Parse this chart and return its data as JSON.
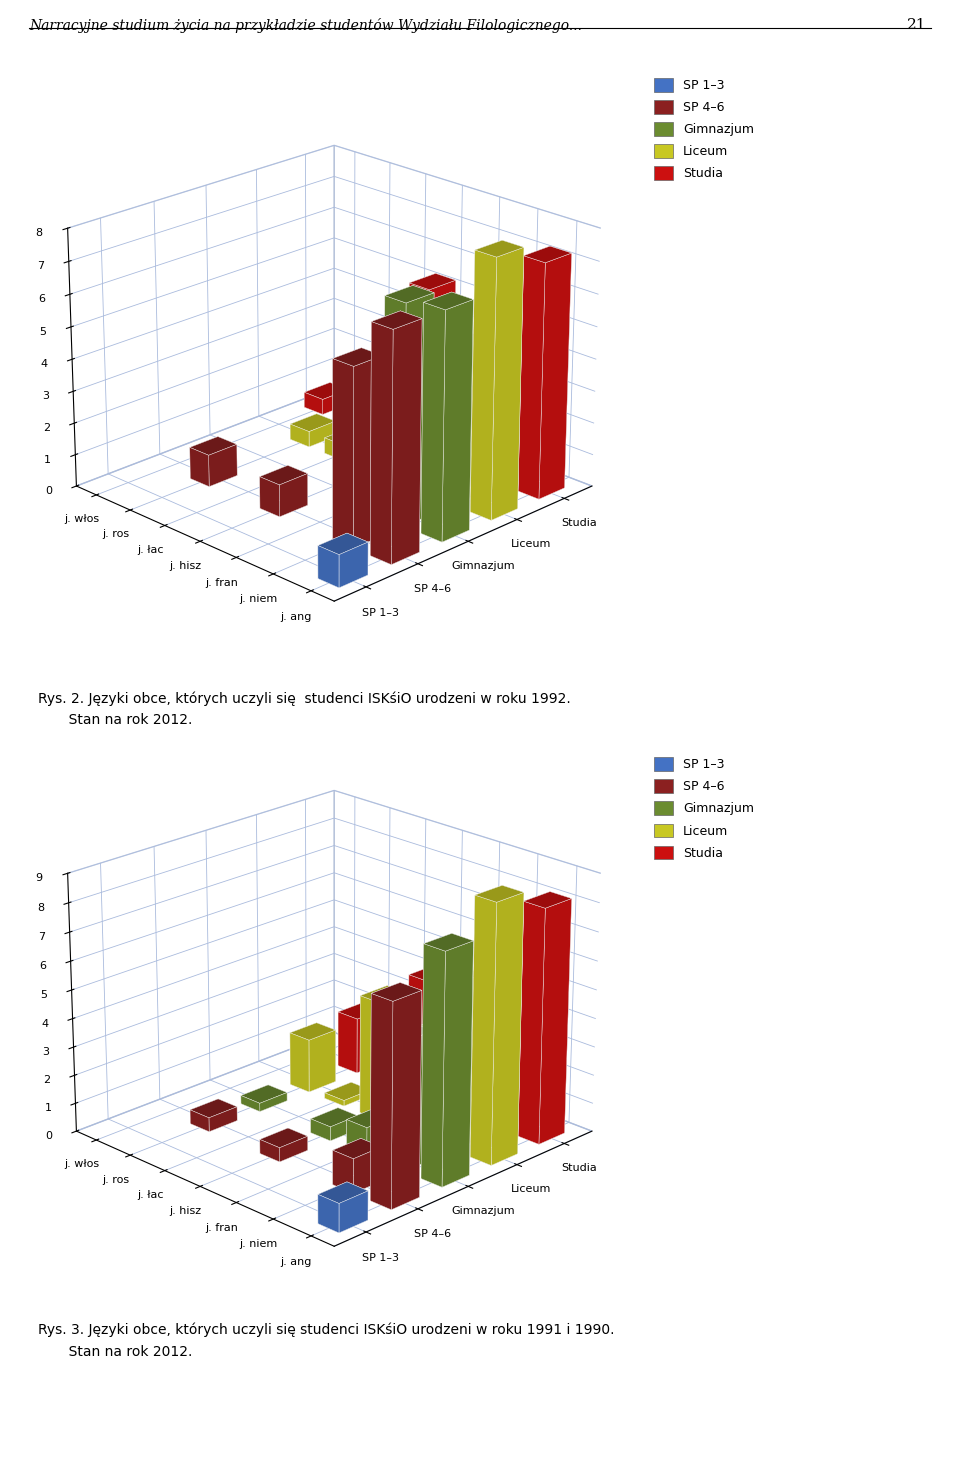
{
  "header": "Narracyjne studium życia na przykładzie studentów Wydziału Filologicznego...",
  "page_num": "21",
  "legend_labels": [
    "SP 1–3",
    "SP 4–6",
    "Gimnazjum",
    "Liceum",
    "Studia"
  ],
  "legend_colors": [
    "#4472C4",
    "#8B2020",
    "#6B8C30",
    "#C8C822",
    "#CC1010"
  ],
  "charts": [
    {
      "ylim": [
        0,
        8
      ],
      "yticks": [
        0,
        1,
        2,
        3,
        4,
        5,
        6,
        7,
        8
      ],
      "languages": [
        "j. ang",
        "j. niem",
        "j. fran",
        "j. hisz",
        "j. łac",
        "j. ros",
        "j. włos"
      ],
      "groups": [
        "SP 1–3",
        "SP 4–6",
        "Gimnazjum",
        "Liceum",
        "Studia"
      ],
      "data": [
        [
          1,
          0,
          0,
          0,
          0,
          0,
          0
        ],
        [
          7,
          5.5,
          0,
          1,
          0,
          1,
          0
        ],
        [
          7,
          6.8,
          0,
          0,
          0,
          0,
          0
        ],
        [
          8,
          4.9,
          0,
          0.5,
          0.5,
          0.5,
          0
        ],
        [
          7.3,
          6.7,
          0,
          5.3,
          0,
          0.5,
          0.5
        ]
      ],
      "caption1": "Rys. 2. Języki obce, których uczyli się  studenci ISKśiO urodzeni w roku 1992.",
      "caption2": "       Stan na rok 2012."
    },
    {
      "ylim": [
        0,
        9
      ],
      "yticks": [
        0,
        1,
        2,
        3,
        4,
        5,
        6,
        7,
        8,
        9
      ],
      "languages": [
        "j. ang",
        "j. niem",
        "j. fran",
        "j. hisz",
        "j. łac",
        "j. ros",
        "j. włos"
      ],
      "groups": [
        "SP 1–3",
        "SP 4–6",
        "Gimnazjum",
        "Liceum",
        "Studia"
      ],
      "data": [
        [
          1,
          0,
          0,
          0,
          0,
          0,
          0
        ],
        [
          7,
          1.2,
          0,
          0.5,
          0,
          0.5,
          0
        ],
        [
          8,
          4.5,
          1,
          0.5,
          0,
          0.3,
          0
        ],
        [
          9,
          5.8,
          3.3,
          4.2,
          0.2,
          1.9,
          0
        ],
        [
          8.2,
          7.5,
          0.2,
          4.3,
          1.9,
          2.0,
          0
        ]
      ],
      "caption1": "Rys. 3. Języki obce, których uczyli się studenci ISKśiO urodzeni w roku 1991 i 1990.",
      "caption2": "       Stan na rok 2012."
    }
  ]
}
